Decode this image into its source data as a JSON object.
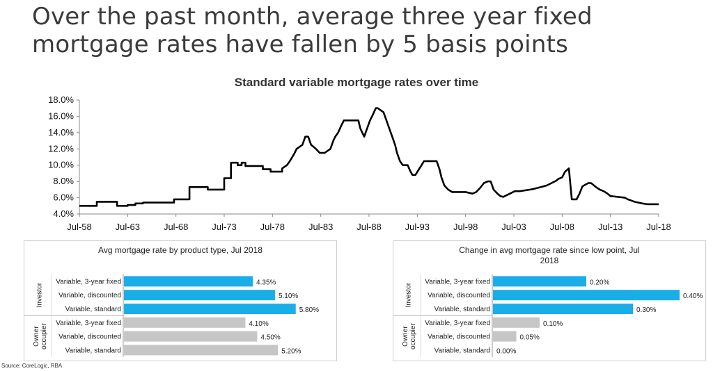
{
  "headline": "Over the past month, average three year fixed mortgage rates have fallen by 5 basis points",
  "source": "Source:  CoreLogic, RBA",
  "chart_data": [
    {
      "type": "line",
      "title": "Standard variable mortgage rates over time",
      "xlabel": "",
      "ylabel": "",
      "x_ticks": [
        "Jul-58",
        "Jul-63",
        "Jul-68",
        "Jul-73",
        "Jul-78",
        "Jul-83",
        "Jul-88",
        "Jul-93",
        "Jul-98",
        "Jul-03",
        "Jul-08",
        "Jul-13",
        "Jul-18"
      ],
      "y_ticks": [
        "4.0%",
        "6.0%",
        "8.0%",
        "10.0%",
        "12.0%",
        "14.0%",
        "16.0%",
        "18.0%"
      ],
      "xlim": [
        1958.5,
        2018.5
      ],
      "ylim": [
        4,
        18
      ],
      "grid": false,
      "series": [
        {
          "name": "",
          "x": [
            1958.5,
            1960.3,
            1960.3,
            1962.4,
            1962.4,
            1963.5,
            1963.5,
            1964.3,
            1964.3,
            1965.1,
            1965.1,
            1968.3,
            1968.3,
            1969.9,
            1969.9,
            1971.8,
            1971.8,
            1973.5,
            1973.5,
            1974.2,
            1974.2,
            1974.9,
            1974.9,
            1975.3,
            1975.3,
            1975.7,
            1975.7,
            1977.5,
            1977.5,
            1978.3,
            1978.3,
            1979.5,
            1979.5,
            1980.0,
            1980.3,
            1980.8,
            1981.0,
            1981.6,
            1981.9,
            1982.2,
            1982.5,
            1983.0,
            1983.4,
            1983.9,
            1984.5,
            1984.8,
            1985.0,
            1985.3,
            1985.6,
            1985.9,
            1986.2,
            1987.4,
            1987.6,
            1988.0,
            1988.3,
            1988.6,
            1988.9,
            1989.2,
            1989.4,
            1990.0,
            1990.3,
            1990.6,
            1990.9,
            1991.2,
            1991.4,
            1991.7,
            1992.0,
            1992.5,
            1992.8,
            1993.0,
            1993.3,
            1994.2,
            1994.5,
            1995.5,
            1995.8,
            1996.0,
            1996.3,
            1996.7,
            1997.1,
            1998.5,
            1999.2,
            1999.6,
            2000.0,
            2000.4,
            2000.8,
            2001.1,
            2001.4,
            2001.8,
            2002.1,
            2002.4,
            2003.6,
            2004.1,
            2005.2,
            2005.6,
            2006.3,
            2006.9,
            2007.4,
            2007.9,
            2008.1,
            2008.5,
            2008.8,
            2009.2,
            2009.5,
            2010.0,
            2010.3,
            2010.6,
            2011.2,
            2011.5,
            2012.0,
            2012.4,
            2012.8,
            2013.2,
            2013.5,
            2015.0,
            2015.3,
            2015.8,
            2016.0,
            2016.4,
            2016.8,
            2017.3,
            2018.5
          ],
          "y": [
            5.0,
            5.0,
            5.5,
            5.5,
            5.0,
            5.0,
            5.1,
            5.1,
            5.3,
            5.3,
            5.4,
            5.4,
            5.8,
            5.8,
            7.3,
            7.3,
            7.0,
            7.0,
            8.4,
            8.4,
            10.3,
            10.3,
            10.0,
            10.0,
            10.3,
            10.3,
            9.9,
            9.9,
            9.5,
            9.5,
            9.2,
            9.2,
            9.6,
            10.0,
            10.5,
            11.5,
            12.0,
            12.5,
            13.5,
            13.5,
            12.5,
            12.0,
            11.5,
            11.5,
            12.0,
            13.0,
            13.5,
            14.0,
            14.8,
            15.5,
            15.5,
            15.5,
            14.5,
            13.5,
            14.5,
            15.5,
            16.2,
            17.0,
            17.0,
            16.5,
            15.5,
            14.5,
            13.5,
            12.5,
            11.5,
            10.5,
            10.0,
            10.0,
            9.2,
            8.8,
            8.8,
            10.5,
            10.5,
            10.5,
            9.5,
            8.5,
            7.5,
            7.0,
            6.7,
            6.7,
            6.5,
            6.7,
            7.2,
            7.8,
            8.0,
            8.0,
            7.0,
            6.5,
            6.2,
            6.1,
            6.8,
            6.8,
            7.0,
            7.1,
            7.3,
            7.5,
            7.8,
            8.1,
            8.3,
            8.5,
            9.2,
            9.6,
            5.8,
            5.8,
            6.5,
            7.4,
            7.8,
            7.8,
            7.3,
            7.0,
            6.8,
            6.5,
            6.2,
            6.0,
            5.8,
            5.6,
            5.5,
            5.4,
            5.3,
            5.2,
            5.2
          ],
          "color": "#000000"
        }
      ]
    },
    {
      "type": "bar",
      "orientation": "horizontal",
      "title": "Avg mortgage rate by product type, Jul 2018",
      "groups": [
        "Investor",
        "Owner occupier"
      ],
      "categories": [
        "Variable, 3-year fixed",
        "Variable, discounted",
        "Variable, standard",
        "Variable, 3-year fixed",
        "Variable, discounted",
        "Variable, standard"
      ],
      "values": [
        4.35,
        5.1,
        5.8,
        4.1,
        4.5,
        5.2
      ],
      "labels": [
        "4.35%",
        "5.10%",
        "5.80%",
        "4.10%",
        "4.50%",
        "5.20%"
      ],
      "xlim": [
        0,
        6.3
      ],
      "colors": {
        "investor": "#1aaee8",
        "owner_occupier": "#c6c6c6"
      }
    },
    {
      "type": "bar",
      "orientation": "horizontal",
      "title": "Change in avg mortgage rate since low point, Jul 2018",
      "groups": [
        "Investor",
        "Owner occupier"
      ],
      "categories": [
        "Variable, 3-year fixed",
        "Variable, discounted",
        "Variable, standard",
        "Variable, 3-year fixed",
        "Variable, discounted",
        "Variable, standard"
      ],
      "values": [
        0.2,
        0.4,
        0.3,
        0.1,
        0.05,
        0.0
      ],
      "labels": [
        "0.20%",
        "0.40%",
        "0.30%",
        "0.10%",
        "0.05%",
        "0.00%"
      ],
      "xlim": [
        0,
        0.4
      ],
      "colors": {
        "investor": "#1aaee8",
        "owner_occupier": "#c6c6c6"
      }
    }
  ]
}
